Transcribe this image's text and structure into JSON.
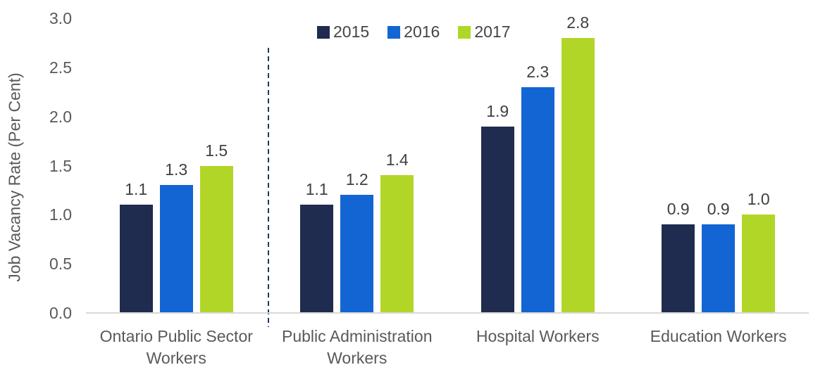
{
  "chart_data": {
    "type": "bar",
    "title": "",
    "xlabel": "",
    "ylabel": "Job Vacancy Rate (Per Cent)",
    "ylim": [
      0,
      3.0
    ],
    "ytick_labels": [
      "0.0",
      "0.5",
      "1.0",
      "1.5",
      "2.0",
      "2.5",
      "3.0"
    ],
    "grid": false,
    "legend_position": "top",
    "data_labels": true,
    "categories": [
      "Ontario Public Sector Workers",
      "Public Administration Workers",
      "Hospital Workers",
      "Education Workers"
    ],
    "series": [
      {
        "name": "2015",
        "color": "#1f2c4f",
        "values": [
          1.1,
          1.1,
          1.9,
          0.9
        ]
      },
      {
        "name": "2016",
        "color": "#1365d4",
        "values": [
          1.3,
          1.2,
          2.3,
          0.9
        ]
      },
      {
        "name": "2017",
        "color": "#b2d628",
        "values": [
          1.5,
          1.4,
          2.8,
          1.0
        ]
      }
    ],
    "separator": {
      "type": "dashed-vline",
      "after_category": "Ontario Public Sector Workers",
      "color": "#1f3864"
    }
  },
  "colors": {
    "background": "#ffffff",
    "axis_line": "#d9d9d9",
    "tick_text": "#595959",
    "data_label_text": "#404040",
    "legend_text": "#444444"
  }
}
